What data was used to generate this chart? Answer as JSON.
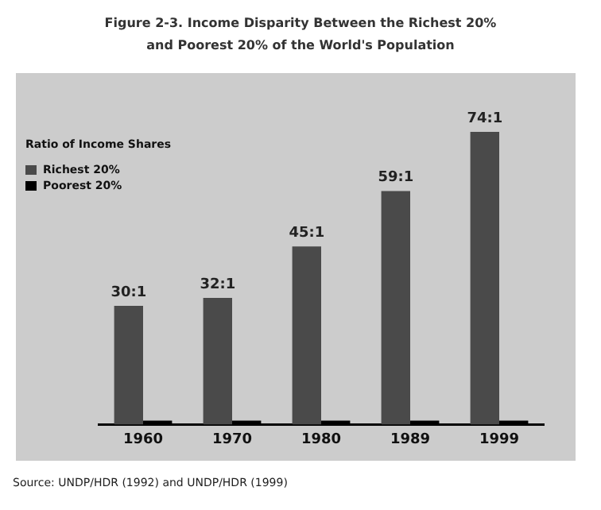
{
  "chart_data": {
    "type": "bar",
    "title": "Figure 2-3. Income Disparity Between the Richest 20%\nand Poorest 20% of the World's Population",
    "legend_title": "Ratio of Income Shares",
    "annotations": [
      "Source: UNDP/HDR (1992) and UNDP/HDR (1999)"
    ],
    "categories": [
      "1960",
      "1970",
      "1980",
      "1989",
      "1999"
    ],
    "legend": "top left",
    "grid": false,
    "series": [
      {
        "name": "Richest 20%",
        "color": "#4a4a4a",
        "values": [
          30,
          32,
          45,
          59,
          74
        ],
        "value_labels": [
          "30:1",
          "32:1",
          "45:1",
          "59:1",
          "74:1"
        ]
      },
      {
        "name": "Poorest 20%",
        "color": "#000000",
        "values": [
          1,
          1,
          1,
          1,
          1
        ]
      }
    ]
  }
}
